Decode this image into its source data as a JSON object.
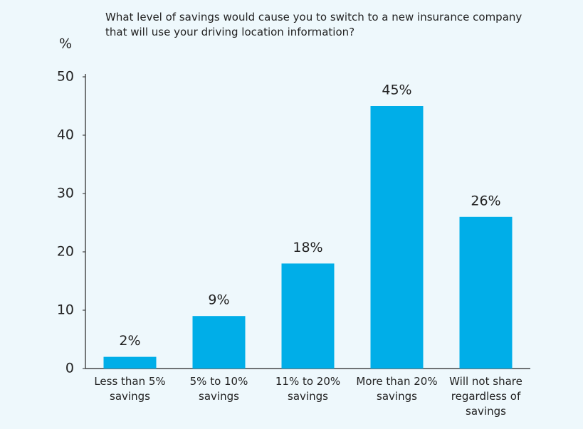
{
  "chart_data": {
    "type": "bar",
    "title": "What level of savings would cause you to switch to a new insurance company that will use your driving location information?",
    "ylabel": "%",
    "categories": [
      "Less than 5% savings",
      "5% to 10% savings",
      "11% to 20% savings",
      "More than 20% savings",
      "Will not share regardless of savings"
    ],
    "values": [
      2,
      9,
      18,
      45,
      26
    ],
    "value_labels": [
      "2%",
      "9%",
      "18%",
      "45%",
      "26%"
    ],
    "color": "#00aee8",
    "ylim": [
      0,
      50
    ],
    "yticks": [
      0,
      10,
      20,
      30,
      40,
      50
    ],
    "grid": false
  }
}
